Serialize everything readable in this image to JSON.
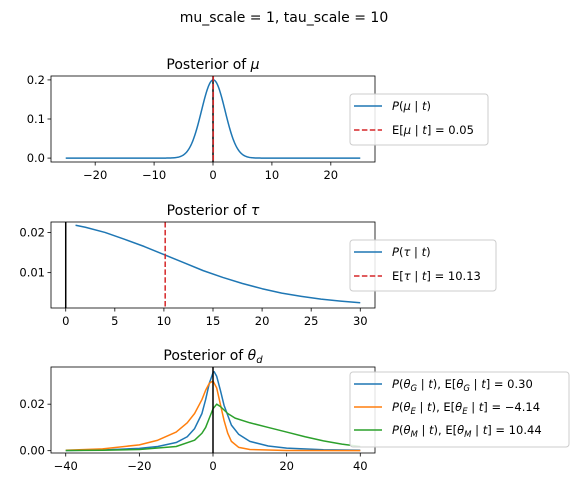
{
  "suptitle": "mu_scale = 1, tau_scale = 10",
  "chart_data": [
    {
      "type": "line",
      "title": "Posterior of μ",
      "xlim": [
        -27.5,
        27.5
      ],
      "ylim": [
        -0.01,
        0.21
      ],
      "xticks": [
        -20,
        -10,
        0,
        10,
        20
      ],
      "yticks": [
        0.0,
        0.1,
        0.2
      ],
      "ytick_labels": [
        "0.0",
        "0.1",
        "0.2"
      ],
      "series": [
        {
          "name": "P(μ | t)",
          "color": "#1f77b4",
          "curve": {
            "kind": "gaussian",
            "center": 0.05,
            "sd": 2.0,
            "peak": 0.2,
            "from": -25,
            "to": 25
          }
        }
      ],
      "vlines": [
        {
          "x": 0,
          "color": "#000000",
          "style": "solid"
        },
        {
          "x": 0.05,
          "color": "#d62728",
          "style": "dashed",
          "name": "E[μ | t] = 0.05"
        }
      ],
      "legend": "right"
    },
    {
      "type": "line",
      "title": "Posterior of τ",
      "xlim": [
        -1.5,
        31.5
      ],
      "ylim": [
        0.0012,
        0.0226
      ],
      "xticks": [
        0,
        5,
        10,
        15,
        20,
        25,
        30
      ],
      "yticks": [
        0.01,
        0.02
      ],
      "ytick_labels": [
        "0.01",
        "0.02"
      ],
      "series": [
        {
          "name": "P(τ | t)",
          "color": "#1f77b4",
          "points": [
            [
              1,
              0.0218
            ],
            [
              2,
              0.0213
            ],
            [
              4,
              0.02
            ],
            [
              6,
              0.0183
            ],
            [
              8,
              0.0165
            ],
            [
              10,
              0.0145
            ],
            [
              12,
              0.0125
            ],
            [
              14,
              0.0105
            ],
            [
              16,
              0.0088
            ],
            [
              18,
              0.0073
            ],
            [
              20,
              0.006
            ],
            [
              22,
              0.0049
            ],
            [
              24,
              0.0041
            ],
            [
              26,
              0.0034
            ],
            [
              28,
              0.0029
            ],
            [
              30,
              0.0025
            ]
          ]
        }
      ],
      "vlines": [
        {
          "x": 0,
          "color": "#000000",
          "style": "solid"
        },
        {
          "x": 10.13,
          "color": "#d62728",
          "style": "dashed",
          "name": "E[τ | t] = 10.13"
        }
      ],
      "legend": "right"
    },
    {
      "type": "line",
      "title": "Posterior of θd",
      "xlim": [
        -44,
        44
      ],
      "ylim": [
        -0.001,
        0.036
      ],
      "xticks": [
        -40,
        -20,
        0,
        20,
        40
      ],
      "yticks": [
        0.0,
        0.02
      ],
      "ytick_labels": [
        "0.00",
        "0.02"
      ],
      "series": [
        {
          "name": "P(θG | t),  E[θG | t] = 0.30",
          "color": "#1f77b4",
          "points": [
            [
              -40,
              0.0001
            ],
            [
              -30,
              0.0003
            ],
            [
              -20,
              0.001
            ],
            [
              -15,
              0.0018
            ],
            [
              -10,
              0.0035
            ],
            [
              -7,
              0.006
            ],
            [
              -5,
              0.0095
            ],
            [
              -3,
              0.016
            ],
            [
              -2,
              0.022
            ],
            [
              -1,
              0.029
            ],
            [
              0,
              0.0335
            ],
            [
              0.3,
              0.034
            ],
            [
              1,
              0.032
            ],
            [
              2,
              0.026
            ],
            [
              3,
              0.0195
            ],
            [
              5,
              0.011
            ],
            [
              7,
              0.007
            ],
            [
              10,
              0.004
            ],
            [
              15,
              0.002
            ],
            [
              20,
              0.0011
            ],
            [
              30,
              0.0004
            ],
            [
              40,
              0.0002
            ]
          ]
        },
        {
          "name": "P(θE | t),  E[θE | t] = −4.14",
          "color": "#ff7f0e",
          "points": [
            [
              -40,
              0.0002
            ],
            [
              -30,
              0.0008
            ],
            [
              -20,
              0.0025
            ],
            [
              -15,
              0.0045
            ],
            [
              -10,
              0.008
            ],
            [
              -7,
              0.012
            ],
            [
              -5,
              0.016
            ],
            [
              -3,
              0.022
            ],
            [
              -2,
              0.026
            ],
            [
              -1,
              0.029
            ],
            [
              0,
              0.03
            ],
            [
              1,
              0.027
            ],
            [
              2,
              0.02
            ],
            [
              3,
              0.013
            ],
            [
              4,
              0.0075
            ],
            [
              5,
              0.004
            ],
            [
              7,
              0.0014
            ],
            [
              10,
              0.0005
            ],
            [
              20,
              0.0001
            ],
            [
              40,
              0.0
            ]
          ]
        },
        {
          "name": "P(θM | t),  E[θM | t] = 10.44",
          "color": "#2ca02c",
          "points": [
            [
              -40,
              0.0001
            ],
            [
              -30,
              0.0002
            ],
            [
              -20,
              0.0005
            ],
            [
              -10,
              0.0018
            ],
            [
              -5,
              0.0045
            ],
            [
              -3,
              0.0075
            ],
            [
              -2,
              0.01
            ],
            [
              -1,
              0.014
            ],
            [
              0,
              0.018
            ],
            [
              1,
              0.02
            ],
            [
              2,
              0.019
            ],
            [
              4,
              0.016
            ],
            [
              6,
              0.014
            ],
            [
              10,
              0.012
            ],
            [
              15,
              0.01
            ],
            [
              20,
              0.008
            ],
            [
              25,
              0.006
            ],
            [
              30,
              0.0042
            ],
            [
              35,
              0.0028
            ],
            [
              40,
              0.0018
            ]
          ]
        }
      ],
      "vlines": [
        {
          "x": 0,
          "color": "#000000",
          "style": "solid"
        }
      ],
      "legend": "right"
    }
  ]
}
